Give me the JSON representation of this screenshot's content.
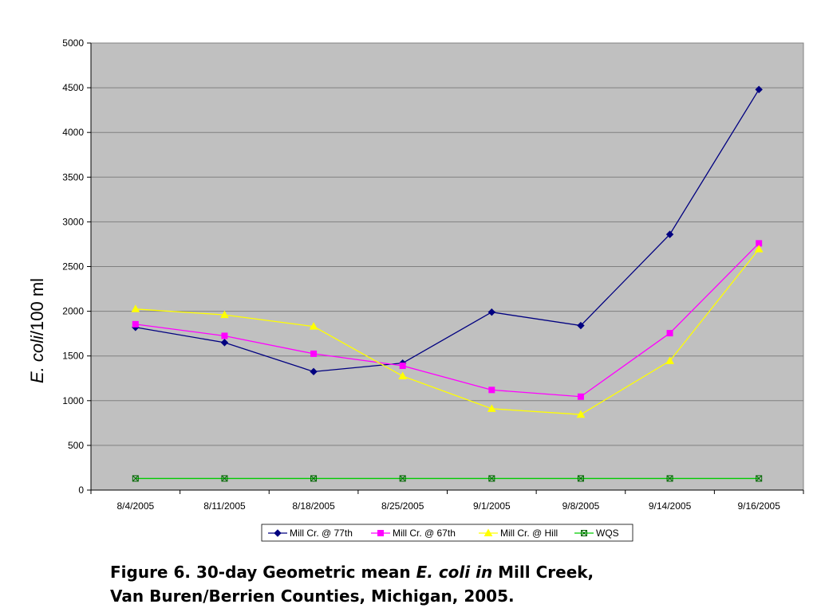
{
  "chart_data": {
    "type": "line",
    "ylabel_italic": "E. coli",
    "ylabel_rest": "/100 ml",
    "categories": [
      "8/4/2005",
      "8/11/2005",
      "8/18/2005",
      "8/25/2005",
      "9/1/2005",
      "9/8/2005",
      "9/14/2005",
      "9/16/2005"
    ],
    "ylim": [
      0,
      5000
    ],
    "yticks": [
      "0",
      "500",
      "1000",
      "1500",
      "2000",
      "2500",
      "3000",
      "3500",
      "4000",
      "4500",
      "5000"
    ],
    "grid": true,
    "legend_position": "bottom",
    "series": [
      {
        "name": "Mill Cr. @ 77th",
        "color": "#000080",
        "marker": "diamond",
        "values": [
          1820,
          1650,
          1325,
          1420,
          1990,
          1840,
          2860,
          4480
        ]
      },
      {
        "name": "Mill Cr. @ 67th",
        "color": "#ff00ff",
        "marker": "square",
        "values": [
          1855,
          1725,
          1525,
          1390,
          1120,
          1045,
          1755,
          2760
        ]
      },
      {
        "name": "Mill Cr. @ Hill",
        "color": "#ffff00",
        "marker": "triangle",
        "values": [
          2025,
          1960,
          1830,
          1275,
          910,
          845,
          1445,
          2695
        ]
      },
      {
        "name": "WQS",
        "color": "#00cc00",
        "marker": "boxx",
        "values": [
          130,
          130,
          130,
          130,
          130,
          130,
          130,
          130
        ]
      }
    ]
  },
  "caption": {
    "line1_a": "Figure 6. 30-day Geometric mean ",
    "line1_b": "E. coli in",
    "line1_c": " Mill Creek,",
    "line2": "Van Buren/Berrien Counties, Michigan, 2005."
  }
}
